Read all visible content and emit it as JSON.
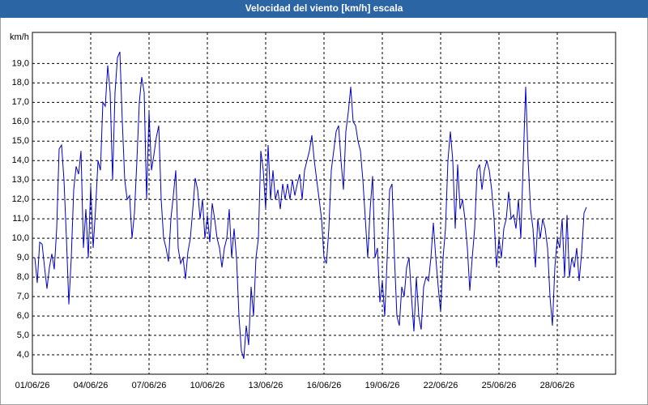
{
  "chart_data": {
    "type": "line",
    "title": "Velocidad del viento [km/h] escala",
    "y_label": "km/h",
    "color": "#0000c8",
    "grid": true,
    "x": [
      0.125,
      0.25,
      0.375,
      0.5,
      0.625,
      0.75,
      0.875,
      1,
      1.125,
      1.25,
      1.375,
      1.5,
      1.625,
      1.75,
      1.875,
      2,
      2.125,
      2.25,
      2.375,
      2.5,
      2.625,
      2.75,
      2.875,
      3,
      3.125,
      3.25,
      3.375,
      3.5,
      3.625,
      3.75,
      3.875,
      4,
      4.125,
      4.25,
      4.375,
      4.5,
      4.625,
      4.75,
      4.875,
      5,
      5.125,
      5.25,
      5.375,
      5.5,
      5.625,
      5.75,
      5.875,
      6,
      6.125,
      6.25,
      6.375,
      6.5,
      6.625,
      6.75,
      6.875,
      7,
      7.125,
      7.25,
      7.375,
      7.5,
      7.625,
      7.75,
      7.875,
      8,
      8.125,
      8.25,
      8.375,
      8.5,
      8.625,
      8.75,
      8.875,
      9,
      9.125,
      9.25,
      9.375,
      9.5,
      9.625,
      9.75,
      9.875,
      10,
      10.125,
      10.25,
      10.375,
      10.5,
      10.625,
      10.75,
      10.875,
      11,
      11.125,
      11.25,
      11.375,
      11.5,
      11.625,
      11.75,
      11.875,
      12,
      12.125,
      12.25,
      12.375,
      12.5,
      12.625,
      12.75,
      12.875,
      13,
      13.125,
      13.25,
      13.375,
      13.5,
      13.625,
      13.75,
      13.875,
      14,
      14.125,
      14.25,
      14.375,
      14.5,
      14.625,
      14.75,
      14.875,
      15,
      15.125,
      15.25,
      15.375,
      15.5,
      15.625,
      15.75,
      15.875,
      16,
      16.125,
      16.25,
      16.375,
      16.5,
      16.625,
      16.75,
      16.875,
      17,
      17.125,
      17.25,
      17.375,
      17.5,
      17.625,
      17.75,
      17.875,
      18,
      18.125,
      18.25,
      18.375,
      18.5,
      18.625,
      18.75,
      18.875,
      19,
      19.125,
      19.25,
      19.375,
      19.5,
      19.625,
      19.75,
      19.875,
      20,
      20.125,
      20.25,
      20.375,
      20.5,
      20.625,
      20.75,
      20.875,
      21,
      21.125,
      21.25,
      21.375,
      21.5,
      21.625,
      21.75,
      21.875,
      22,
      22.125,
      22.25,
      22.375,
      22.5,
      22.625,
      22.75,
      22.875,
      23,
      23.125,
      23.25,
      23.375,
      23.5,
      23.625,
      23.75,
      23.875,
      24,
      24.125,
      24.25,
      24.375,
      24.5,
      24.625,
      24.75,
      24.875,
      25,
      25.125,
      25.25,
      25.375,
      25.5,
      25.625,
      25.75,
      25.875,
      26,
      26.125,
      26.25,
      26.375,
      26.5,
      26.625,
      26.75,
      26.875,
      27,
      27.125,
      27.25,
      27.375,
      27.5,
      27.625,
      27.75,
      27.875,
      28,
      28.125,
      28.25,
      28.375,
      28.5
    ],
    "values": [
      9.0,
      7.7,
      9.8,
      9.7,
      8.5,
      7.4,
      8.5,
      9.2,
      8.4,
      10.5,
      14.6,
      14.8,
      13.0,
      10.0,
      6.6,
      9.0,
      12.5,
      13.7,
      13.3,
      14.5,
      9.5,
      11.5,
      9.0,
      12.7,
      9.5,
      11.5,
      14.0,
      13.5,
      17.0,
      16.8,
      18.9,
      17.5,
      13.0,
      17.5,
      19.3,
      19.6,
      16.0,
      13.0,
      12.0,
      12.2,
      10.0,
      11.3,
      14.0,
      17.0,
      18.3,
      17.5,
      12.0,
      16.5,
      13.5,
      14.3,
      15.2,
      15.8,
      12.0,
      10.0,
      9.5,
      8.8,
      11.0,
      12.2,
      13.5,
      9.5,
      8.7,
      9.0,
      7.9,
      9.3,
      10.0,
      11.5,
      13.1,
      12.5,
      11.0,
      12.0,
      10.0,
      11.2,
      9.8,
      11.8,
      11.0,
      10.0,
      9.5,
      8.5,
      9.5,
      10.0,
      11.5,
      9.0,
      10.5,
      9.0,
      6.0,
      4.2,
      3.8,
      5.5,
      4.5,
      7.5,
      6.0,
      9.0,
      10.0,
      14.5,
      13.5,
      11.5,
      14.8,
      12.0,
      13.5,
      12.0,
      12.5,
      11.5,
      12.8,
      12.0,
      12.8,
      12.0,
      13.0,
      12.2,
      12.8,
      13.3,
      12.0,
      13.5,
      14.0,
      14.5,
      15.3,
      14.0,
      13.0,
      12.0,
      11.0,
      9.0,
      8.7,
      10.5,
      13.5,
      14.5,
      15.5,
      15.8,
      14.0,
      12.5,
      15.5,
      16.5,
      17.8,
      16.0,
      15.8,
      15.0,
      14.5,
      13.0,
      11.0,
      9.0,
      11.5,
      13.2,
      9.0,
      9.5,
      6.7,
      7.8,
      6.0,
      9.0,
      12.5,
      12.8,
      9.0,
      6.0,
      5.5,
      7.5,
      7.0,
      8.5,
      9.0,
      7.0,
      5.2,
      8.0,
      6.0,
      5.3,
      7.5,
      8.0,
      7.8,
      9.0,
      10.8,
      9.0,
      7.5,
      6.2,
      9.0,
      10.5,
      14.0,
      15.5,
      14.0,
      10.5,
      13.8,
      11.5,
      12.0,
      11.0,
      9.5,
      7.3,
      9.0,
      10.5,
      13.5,
      13.8,
      12.5,
      13.5,
      14.0,
      13.5,
      12.5,
      11.0,
      8.5,
      10.0,
      9.0,
      10.5,
      11.0,
      12.4,
      11.0,
      11.2,
      10.5,
      12.0,
      10.0,
      14.0,
      17.8,
      14.0,
      11.5,
      10.5,
      8.5,
      11.0,
      10.0,
      11.0,
      10.5,
      9.5,
      7.0,
      5.5,
      8.5,
      10.0,
      9.5,
      11.0,
      8.0,
      11.2,
      8.0,
      9.0,
      8.5,
      9.5,
      7.8,
      9.2,
      11.3,
      11.6
    ],
    "xlim": [
      0,
      30
    ],
    "xticks": [
      {
        "value": 0,
        "label": "01/06/26"
      },
      {
        "value": 3,
        "label": "04/06/26"
      },
      {
        "value": 6,
        "label": "07/06/26"
      },
      {
        "value": 9,
        "label": "10/06/26"
      },
      {
        "value": 12,
        "label": "13/06/26"
      },
      {
        "value": 15,
        "label": "16/06/26"
      },
      {
        "value": 18,
        "label": "19/06/26"
      },
      {
        "value": 21,
        "label": "22/06/26"
      },
      {
        "value": 24,
        "label": "25/06/26"
      },
      {
        "value": 27,
        "label": "28/06/26"
      }
    ],
    "ylim": [
      3.0,
      20.6
    ],
    "yticks": [
      {
        "value": 4,
        "label": "4,0"
      },
      {
        "value": 5,
        "label": "5,0"
      },
      {
        "value": 6,
        "label": "6,0"
      },
      {
        "value": 7,
        "label": "7,0"
      },
      {
        "value": 8,
        "label": "8,0"
      },
      {
        "value": 9,
        "label": "9,0"
      },
      {
        "value": 10,
        "label": "10,0"
      },
      {
        "value": 11,
        "label": "11,0"
      },
      {
        "value": 12,
        "label": "12,0"
      },
      {
        "value": 13,
        "label": "13,0"
      },
      {
        "value": 14,
        "label": "14,0"
      },
      {
        "value": 15,
        "label": "15,0"
      },
      {
        "value": 16,
        "label": "16,0"
      },
      {
        "value": 17,
        "label": "17,0"
      },
      {
        "value": 18,
        "label": "18,0"
      },
      {
        "value": 19,
        "label": "19,0"
      }
    ]
  }
}
